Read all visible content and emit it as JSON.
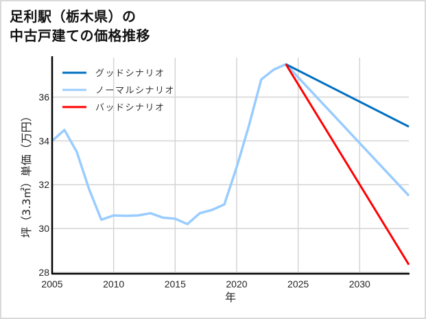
{
  "title": {
    "line1": "足利駅（栃木県）の",
    "line2": "中古戸建ての価格推移"
  },
  "chart_data": {
    "type": "line",
    "title": "足利駅（栃木県）の中古戸建ての価格推移",
    "xlabel": "年",
    "ylabel": "坪（3.3㎡）単価（万円）",
    "xlim": [
      2005,
      2034
    ],
    "ylim": [
      28,
      37.8
    ],
    "xticks": [
      2005,
      2010,
      2015,
      2020,
      2025,
      2030
    ],
    "yticks": [
      28,
      30,
      32,
      34,
      36
    ],
    "grid": true,
    "legend_position": "upper left",
    "series": [
      {
        "name": "グッドシナリオ",
        "color": "#0070c0",
        "x": [
          2024,
          2034
        ],
        "y": [
          37.5,
          34.65
        ]
      },
      {
        "name": "ノーマルシナリオ",
        "color": "#99ccff",
        "x": [
          2005,
          2006,
          2007,
          2008,
          2009,
          2010,
          2011,
          2012,
          2013,
          2014,
          2015,
          2016,
          2017,
          2018,
          2019,
          2020,
          2021,
          2022,
          2023,
          2024,
          2034
        ],
        "y": [
          34.0,
          34.5,
          33.5,
          31.8,
          30.4,
          30.6,
          30.58,
          30.6,
          30.7,
          30.5,
          30.45,
          30.2,
          30.7,
          30.85,
          31.1,
          32.8,
          34.7,
          36.8,
          37.25,
          37.5,
          31.5
        ]
      },
      {
        "name": "バッドシナリオ",
        "color": "#ff0000",
        "x": [
          2024,
          2034
        ],
        "y": [
          37.5,
          28.35
        ]
      }
    ]
  },
  "legend": [
    {
      "label": "グッドシナリオ",
      "color": "#0070c0"
    },
    {
      "label": "ノーマルシナリオ",
      "color": "#99ccff"
    },
    {
      "label": "バッドシナリオ",
      "color": "#ff0000"
    }
  ],
  "axes": {
    "xlabel": "年",
    "ylabel": "坪（3.3㎡）単価（万円）",
    "xticks": [
      "2005",
      "2010",
      "2015",
      "2020",
      "2025",
      "2030"
    ],
    "yticks": [
      "28",
      "30",
      "32",
      "34",
      "36"
    ]
  }
}
